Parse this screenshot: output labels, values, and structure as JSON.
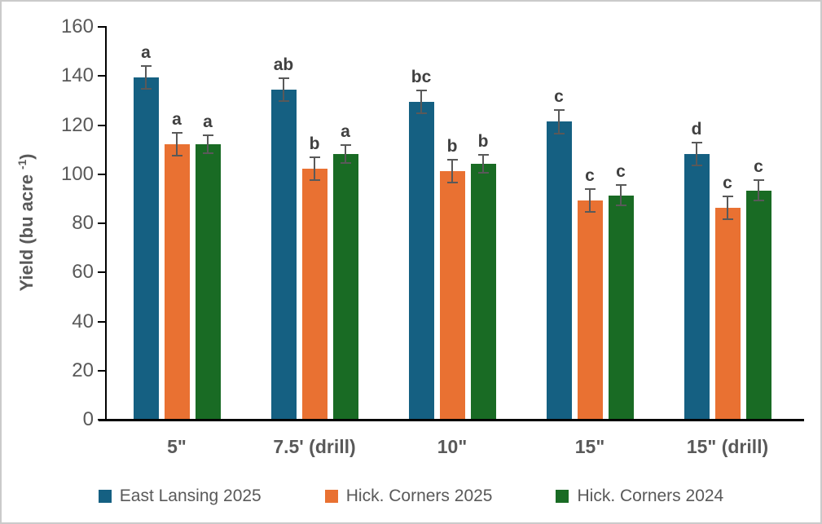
{
  "figure": {
    "background": "#ffffff",
    "border_color": "#cbcbcb"
  },
  "ylabel_parts": {
    "main": "Yield (bu acre ",
    "sup": "-1",
    "close": ")"
  },
  "chart_data": {
    "type": "bar",
    "ylabel": "Yield (bu acre -1)",
    "xlabel": "",
    "ylim": [
      0,
      160
    ],
    "yticks": [
      0,
      20,
      40,
      60,
      80,
      100,
      120,
      140,
      160
    ],
    "grid": false,
    "legend_position": "bottom",
    "categories": [
      "5\"",
      "7.5' (drill)",
      "10\"",
      "15\"",
      "15\" (drill)"
    ],
    "series": [
      {
        "name": "East Lansing 2025",
        "color": "#156082",
        "values": [
          139,
          134,
          129,
          121,
          108
        ],
        "errors": [
          5,
          5,
          5,
          5,
          5
        ],
        "letters": [
          "a",
          "ab",
          "bc",
          "c",
          "d"
        ]
      },
      {
        "name": "Hick. Corners 2025",
        "color": "#E97132",
        "values": [
          112,
          102,
          101,
          89,
          86
        ],
        "errors": [
          5,
          5,
          5,
          5,
          5
        ],
        "letters": [
          "a",
          "b",
          "b",
          "c",
          "c"
        ]
      },
      {
        "name": "Hick. Corners 2024",
        "color": "#196B24",
        "values": [
          112,
          108,
          104,
          91,
          93
        ],
        "errors": [
          4,
          4,
          4,
          4.5,
          4.5
        ],
        "letters": [
          "a",
          "a",
          "b",
          "c",
          "c"
        ]
      }
    ],
    "colors": {
      "axis_line": "#000000",
      "tick_label": "#595959",
      "sig_letter": "#404040",
      "error_bar": "#595959"
    }
  }
}
